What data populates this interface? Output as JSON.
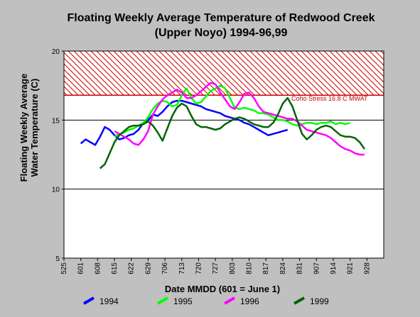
{
  "chart_data": {
    "type": "line",
    "title": "Floating Weekly Average Temperature of Redwood Creek",
    "subtitle": "(Upper Noyo) 1994-96,99",
    "xlabel": "Date MMDD (601 = June 1)",
    "ylabel_line1": "Floating Weekly Average",
    "ylabel_line2": "Water Temperature (C)",
    "x_ticks": [
      "525",
      "601",
      "608",
      "615",
      "622",
      "629",
      "706",
      "713",
      "720",
      "727",
      "803",
      "810",
      "817",
      "824",
      "831",
      "907",
      "914",
      "921",
      "928"
    ],
    "x_tick_positions": [
      -7,
      0,
      7,
      14,
      21,
      28,
      35,
      42,
      49,
      56,
      63,
      70,
      77,
      84,
      91,
      98,
      105,
      112,
      119
    ],
    "xlim": [
      -7,
      126
    ],
    "ylim": [
      5,
      20
    ],
    "y_ticks": [
      "5",
      "10",
      "15",
      "20"
    ],
    "y_tick_values": [
      5,
      10,
      15,
      20
    ],
    "gridlines_y": [
      10,
      15
    ],
    "grid": true,
    "threshold": {
      "value": 16.8,
      "label": "Coho Stress 16.8  C MWAT",
      "color": "#cc0000"
    },
    "series": [
      {
        "name": "1994",
        "color": "#0000ff",
        "x": [
          0,
          2,
          4,
          6,
          8,
          10,
          12,
          14,
          16,
          18,
          20,
          22,
          24,
          26,
          28,
          30,
          32,
          34,
          36,
          38,
          40,
          42,
          44,
          46,
          48,
          50,
          52,
          54,
          56,
          58,
          60,
          62,
          64,
          66,
          68,
          70,
          72,
          74,
          76,
          78,
          80,
          82,
          84,
          86
        ],
        "y": [
          13.3,
          13.6,
          13.4,
          13.2,
          13.8,
          14.5,
          14.3,
          13.9,
          13.6,
          13.7,
          13.9,
          14.0,
          14.3,
          14.8,
          15.0,
          15.4,
          15.3,
          15.6,
          16.0,
          16.3,
          16.4,
          16.4,
          16.3,
          16.2,
          16.1,
          16.0,
          15.8,
          15.7,
          15.6,
          15.5,
          15.3,
          15.2,
          15.1,
          15.0,
          14.8,
          14.7,
          14.5,
          14.3,
          14.1,
          13.9,
          14.0,
          14.1,
          14.2,
          14.3
        ]
      },
      {
        "name": "1995",
        "color": "#00ff00",
        "x": [
          14,
          16,
          18,
          20,
          22,
          24,
          26,
          28,
          30,
          32,
          34,
          36,
          38,
          40,
          42,
          44,
          46,
          48,
          50,
          52,
          54,
          56,
          58,
          60,
          62,
          64,
          66,
          68,
          70,
          72,
          74,
          76,
          78,
          80,
          82,
          84,
          86,
          88,
          90,
          92,
          94,
          96,
          98,
          100,
          102,
          104,
          106,
          108,
          110,
          112
        ],
        "y": [
          13.8,
          14.0,
          14.1,
          14.3,
          14.4,
          14.6,
          14.8,
          15.2,
          15.8,
          16.2,
          16.4,
          16.3,
          16.0,
          16.1,
          16.8,
          17.3,
          16.6,
          16.2,
          16.3,
          16.7,
          17.1,
          17.3,
          17.5,
          17.3,
          16.6,
          15.9,
          15.8,
          15.9,
          15.8,
          15.7,
          15.5,
          15.5,
          15.4,
          15.2,
          15.0,
          15.0,
          14.9,
          14.7,
          14.6,
          14.7,
          14.8,
          14.8,
          14.7,
          14.8,
          14.8,
          14.9,
          14.7,
          14.8,
          14.7,
          14.8
        ]
      },
      {
        "name": "1996",
        "color": "#ff00ff",
        "x": [
          14,
          16,
          18,
          20,
          22,
          24,
          26,
          28,
          30,
          32,
          34,
          36,
          38,
          40,
          42,
          44,
          46,
          48,
          50,
          52,
          54,
          56,
          58,
          60,
          62,
          64,
          66,
          68,
          70,
          72,
          74,
          76,
          78,
          80,
          82,
          84,
          86,
          88,
          90,
          92,
          94,
          96,
          98,
          100,
          102,
          104,
          106,
          108,
          110,
          112,
          114,
          116,
          118
        ],
        "y": [
          14.2,
          14.0,
          13.8,
          13.6,
          13.3,
          13.2,
          13.6,
          14.2,
          15.4,
          16.0,
          16.5,
          16.8,
          17.0,
          17.2,
          17.0,
          16.6,
          16.6,
          16.8,
          17.1,
          17.4,
          17.7,
          17.6,
          17.0,
          16.5,
          16.0,
          15.8,
          16.3,
          16.9,
          17.0,
          16.6,
          16.0,
          15.6,
          15.5,
          15.4,
          15.3,
          15.2,
          15.1,
          15.1,
          14.9,
          14.6,
          14.3,
          14.2,
          14.1,
          14.0,
          13.9,
          13.7,
          13.4,
          13.1,
          12.9,
          12.8,
          12.6,
          12.5,
          12.5
        ]
      },
      {
        "name": "1999",
        "color": "#006400",
        "x": [
          8,
          10,
          12,
          14,
          16,
          18,
          20,
          22,
          24,
          26,
          28,
          30,
          32,
          34,
          36,
          38,
          40,
          42,
          44,
          46,
          48,
          50,
          52,
          54,
          56,
          58,
          60,
          62,
          64,
          66,
          68,
          70,
          72,
          74,
          76,
          78,
          80,
          82,
          84,
          86,
          88,
          90,
          92,
          94,
          96,
          98,
          100,
          102,
          104,
          106,
          108,
          110,
          112,
          114,
          116,
          118
        ],
        "y": [
          11.5,
          11.8,
          12.6,
          13.4,
          13.9,
          14.2,
          14.5,
          14.6,
          14.6,
          14.7,
          14.9,
          14.6,
          14.1,
          13.5,
          14.4,
          15.3,
          15.9,
          16.2,
          16.0,
          15.3,
          14.7,
          14.5,
          14.5,
          14.4,
          14.3,
          14.4,
          14.7,
          14.9,
          15.1,
          15.2,
          15.1,
          14.9,
          14.7,
          14.6,
          14.5,
          14.5,
          14.8,
          15.4,
          16.2,
          16.6,
          16.0,
          15.0,
          14.0,
          13.6,
          13.9,
          14.3,
          14.5,
          14.6,
          14.5,
          14.2,
          13.9,
          13.8,
          13.8,
          13.7,
          13.4,
          12.9
        ]
      }
    ],
    "legend_position": "bottom"
  }
}
